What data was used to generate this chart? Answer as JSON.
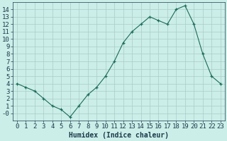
{
  "xlabel": "Humidex (Indice chaleur)",
  "x": [
    0,
    1,
    2,
    3,
    4,
    5,
    6,
    7,
    8,
    9,
    10,
    11,
    12,
    13,
    14,
    15,
    16,
    17,
    18,
    19,
    20,
    21,
    22,
    23
  ],
  "y": [
    4,
    3.5,
    3,
    2,
    1,
    0.5,
    -0.5,
    1,
    2.5,
    3.5,
    5,
    7,
    9.5,
    11,
    12,
    13,
    12.5,
    12,
    14,
    14.5,
    12,
    8,
    5,
    4
  ],
  "line_color": "#1a6b5a",
  "bg_color": "#cceee8",
  "grid_color": "#aaccc8",
  "tick_color": "#1a3a4a",
  "axis_bg": "#cceee8",
  "ylim": [
    -1,
    15
  ],
  "xlim": [
    -0.5,
    23.5
  ],
  "yticks": [
    0,
    1,
    2,
    3,
    4,
    5,
    6,
    7,
    8,
    9,
    10,
    11,
    12,
    13,
    14
  ],
  "ytick_labels": [
    "-0",
    "1",
    "2",
    "3",
    "4",
    "5",
    "6",
    "7",
    "8",
    "9",
    "10",
    "11",
    "12",
    "13",
    "14"
  ],
  "xticks": [
    0,
    1,
    2,
    3,
    4,
    5,
    6,
    7,
    8,
    9,
    10,
    11,
    12,
    13,
    14,
    15,
    16,
    17,
    18,
    19,
    20,
    21,
    22,
    23
  ],
  "xlabel_fontsize": 7,
  "tick_fontsize": 6.5
}
